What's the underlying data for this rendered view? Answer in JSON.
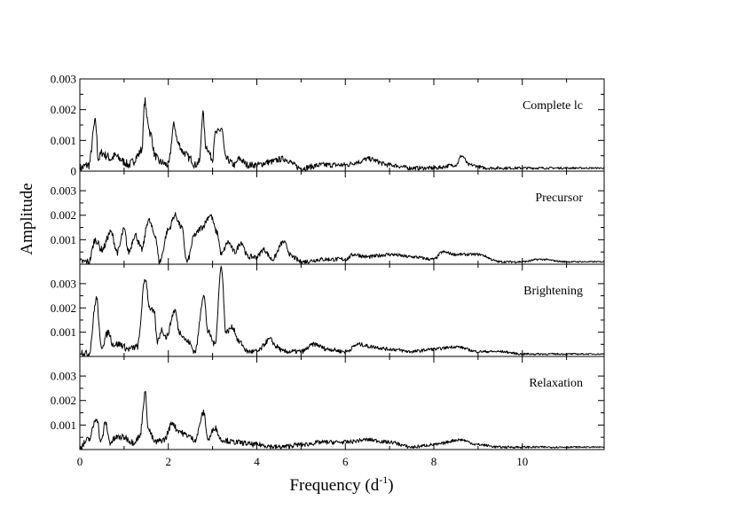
{
  "chart_data": {
    "type": "line",
    "xlabel": "Frequency (d",
    "xlabel_sup": "-1",
    "xlabel_close": ")",
    "ylabel": "Amplitude",
    "xlim": [
      0,
      11.85
    ],
    "x_ticks": [
      0,
      2,
      4,
      6,
      8,
      10
    ],
    "grid": false,
    "panels": [
      {
        "label": "Complete lc",
        "ylim": [
          0,
          0.003
        ],
        "y_ticks": [
          0,
          0.001,
          0.002,
          0.003
        ],
        "y_tick_labels": [
          "0",
          "0.001",
          "0.002",
          "0.003"
        ],
        "floor": 0.0003,
        "series": [
          {
            "values": [
              [
                0.0,
                0.0001
              ],
              [
                0.2,
                0.0002
              ],
              [
                0.35,
                0.0016
              ],
              [
                0.42,
                0.0004
              ],
              [
                0.5,
                0.0006
              ],
              [
                0.6,
                0.0005
              ],
              [
                0.7,
                0.0004
              ],
              [
                0.8,
                0.0005
              ],
              [
                0.9,
                0.0004
              ],
              [
                1.0,
                0.0003
              ],
              [
                1.1,
                0.0002
              ],
              [
                1.2,
                0.0003
              ],
              [
                1.3,
                0.0005
              ],
              [
                1.4,
                0.0007
              ],
              [
                1.47,
                0.0023
              ],
              [
                1.52,
                0.0017
              ],
              [
                1.6,
                0.0012
              ],
              [
                1.7,
                0.0005
              ],
              [
                1.8,
                0.0003
              ],
              [
                2.0,
                0.0002
              ],
              [
                2.13,
                0.0015
              ],
              [
                2.22,
                0.0009
              ],
              [
                2.35,
                0.0006
              ],
              [
                2.5,
                0.0004
              ],
              [
                2.6,
                0.0002
              ],
              [
                2.7,
                0.0003
              ],
              [
                2.78,
                0.0019
              ],
              [
                2.85,
                0.0008
              ],
              [
                3.0,
                0.0004
              ],
              [
                3.05,
                0.0012
              ],
              [
                3.15,
                0.0013
              ],
              [
                3.2,
                0.0014
              ],
              [
                3.3,
                0.0004
              ],
              [
                3.5,
                0.0002
              ],
              [
                3.6,
                0.0004
              ],
              [
                3.8,
                0.0002
              ],
              [
                4.0,
                0.0002
              ],
              [
                4.3,
                0.0003
              ],
              [
                4.6,
                0.0004
              ],
              [
                5.0,
                0.0001
              ],
              [
                5.5,
                0.0002
              ],
              [
                6.0,
                0.0002
              ],
              [
                6.3,
                0.0003
              ],
              [
                6.5,
                0.0004
              ],
              [
                7.0,
                0.0002
              ],
              [
                7.5,
                0.0001
              ],
              [
                8.0,
                0.0001
              ],
              [
                8.5,
                0.0002
              ],
              [
                8.63,
                0.0005
              ],
              [
                8.8,
                0.0002
              ],
              [
                9.2,
                0.0001
              ],
              [
                10.0,
                0.0001
              ],
              [
                11.0,
                0.0001
              ],
              [
                11.85,
                0.0001
              ]
            ]
          }
        ]
      },
      {
        "label": "Precursor",
        "ylim": [
          0,
          0.0038
        ],
        "y_ticks": [
          0.001,
          0.002,
          0.003
        ],
        "y_tick_labels": [
          "0.001",
          "0.002",
          "0.003"
        ],
        "floor": 0.0003,
        "series": [
          {
            "values": [
              [
                0.2,
                0.0001
              ],
              [
                0.35,
                0.001
              ],
              [
                0.5,
                0.0006
              ],
              [
                0.7,
                0.0013
              ],
              [
                0.85,
                0.0005
              ],
              [
                1.0,
                0.0014
              ],
              [
                1.1,
                0.0005
              ],
              [
                1.25,
                0.0012
              ],
              [
                1.4,
                0.0006
              ],
              [
                1.55,
                0.0018
              ],
              [
                1.7,
                0.0012
              ],
              [
                1.8,
                0.0001
              ],
              [
                2.0,
                0.0014
              ],
              [
                2.15,
                0.002
              ],
              [
                2.3,
                0.0015
              ],
              [
                2.42,
                0.0001
              ],
              [
                2.6,
                0.0012
              ],
              [
                2.75,
                0.0015
              ],
              [
                2.95,
                0.002
              ],
              [
                3.1,
                0.0013
              ],
              [
                3.2,
                0.0004
              ],
              [
                3.35,
                0.0009
              ],
              [
                3.5,
                0.0005
              ],
              [
                3.65,
                0.0009
              ],
              [
                3.8,
                0.0003
              ],
              [
                4.0,
                0.0003
              ],
              [
                4.15,
                0.0006
              ],
              [
                4.35,
                0.0002
              ],
              [
                4.6,
                0.0009
              ],
              [
                4.8,
                0.0003
              ],
              [
                5.0,
                0.0001
              ],
              [
                5.5,
                0.0002
              ],
              [
                6.0,
                0.0002
              ],
              [
                6.2,
                0.0004
              ],
              [
                6.5,
                0.0003
              ],
              [
                7.0,
                0.0004
              ],
              [
                7.5,
                0.0003
              ],
              [
                8.0,
                0.0002
              ],
              [
                8.2,
                0.0005
              ],
              [
                8.5,
                0.0004
              ],
              [
                9.0,
                0.0004
              ],
              [
                9.5,
                0.0001
              ],
              [
                10.0,
                0.0001
              ],
              [
                10.4,
                0.0002
              ],
              [
                11.0,
                0.0001
              ],
              [
                11.85,
                0.0001
              ]
            ]
          }
        ]
      },
      {
        "label": "Brightening",
        "ylim": [
          0,
          0.0038
        ],
        "y_ticks": [
          0.001,
          0.002,
          0.003
        ],
        "y_tick_labels": [
          "0.001",
          "0.002",
          "0.003"
        ],
        "floor": 0.0003,
        "series": [
          {
            "values": [
              [
                0.0,
                0.0002
              ],
              [
                0.2,
                0.0001
              ],
              [
                0.38,
                0.0024
              ],
              [
                0.48,
                0.0004
              ],
              [
                0.65,
                0.001
              ],
              [
                0.75,
                0.0005
              ],
              [
                0.9,
                0.0005
              ],
              [
                1.1,
                0.0003
              ],
              [
                1.3,
                0.0004
              ],
              [
                1.48,
                0.0032
              ],
              [
                1.58,
                0.002
              ],
              [
                1.68,
                0.0018
              ],
              [
                1.75,
                0.0006
              ],
              [
                1.85,
                0.0011
              ],
              [
                1.95,
                0.0008
              ],
              [
                2.15,
                0.0019
              ],
              [
                2.25,
                0.001
              ],
              [
                2.45,
                0.0006
              ],
              [
                2.6,
                0.0002
              ],
              [
                2.8,
                0.0025
              ],
              [
                2.9,
                0.001
              ],
              [
                3.05,
                0.0005
              ],
              [
                3.2,
                0.0037
              ],
              [
                3.3,
                0.001
              ],
              [
                3.45,
                0.0012
              ],
              [
                3.6,
                0.0006
              ],
              [
                3.8,
                0.0002
              ],
              [
                4.0,
                0.0002
              ],
              [
                4.3,
                0.0007
              ],
              [
                4.45,
                0.0004
              ],
              [
                4.6,
                0.0002
              ],
              [
                5.0,
                0.0002
              ],
              [
                5.3,
                0.0005
              ],
              [
                5.6,
                0.0003
              ],
              [
                6.0,
                0.0002
              ],
              [
                6.3,
                0.0005
              ],
              [
                6.6,
                0.0004
              ],
              [
                7.0,
                0.0003
              ],
              [
                7.5,
                0.0002
              ],
              [
                8.0,
                0.0003
              ],
              [
                8.5,
                0.0004
              ],
              [
                9.0,
                0.0002
              ],
              [
                9.5,
                0.0002
              ],
              [
                10.0,
                0.0001
              ],
              [
                11.0,
                0.0001
              ],
              [
                11.85,
                0.0001
              ]
            ]
          }
        ]
      },
      {
        "label": "Relaxation",
        "ylim": [
          0,
          0.0038
        ],
        "y_ticks": [
          0.001,
          0.002,
          0.003
        ],
        "y_tick_labels": [
          "0.001",
          "0.002",
          "0.003"
        ],
        "floor": 0.0003,
        "series": [
          {
            "values": [
              [
                0.0,
                0.0001
              ],
              [
                0.2,
                0.0004
              ],
              [
                0.38,
                0.0013
              ],
              [
                0.48,
                0.0003
              ],
              [
                0.58,
                0.0011
              ],
              [
                0.68,
                0.0003
              ],
              [
                0.85,
                0.0005
              ],
              [
                1.0,
                0.0005
              ],
              [
                1.2,
                0.0003
              ],
              [
                1.35,
                0.0005
              ],
              [
                1.48,
                0.0023
              ],
              [
                1.55,
                0.0008
              ],
              [
                1.7,
                0.0003
              ],
              [
                1.9,
                0.0004
              ],
              [
                2.1,
                0.0011
              ],
              [
                2.2,
                0.0008
              ],
              [
                2.4,
                0.0006
              ],
              [
                2.6,
                0.0004
              ],
              [
                2.8,
                0.0015
              ],
              [
                2.9,
                0.0004
              ],
              [
                3.05,
                0.0009
              ],
              [
                3.2,
                0.0004
              ],
              [
                3.5,
                0.0003
              ],
              [
                4.0,
                0.0002
              ],
              [
                4.5,
                0.0001
              ],
              [
                5.0,
                0.0002
              ],
              [
                5.5,
                0.0003
              ],
              [
                6.0,
                0.0003
              ],
              [
                6.5,
                0.0004
              ],
              [
                7.0,
                0.0003
              ],
              [
                7.5,
                0.0001
              ],
              [
                8.0,
                0.0002
              ],
              [
                8.6,
                0.0004
              ],
              [
                9.0,
                0.0002
              ],
              [
                9.5,
                0.0001
              ],
              [
                10.0,
                0.0001
              ],
              [
                11.0,
                0.0001
              ],
              [
                11.85,
                0.0001
              ]
            ]
          }
        ]
      }
    ]
  }
}
